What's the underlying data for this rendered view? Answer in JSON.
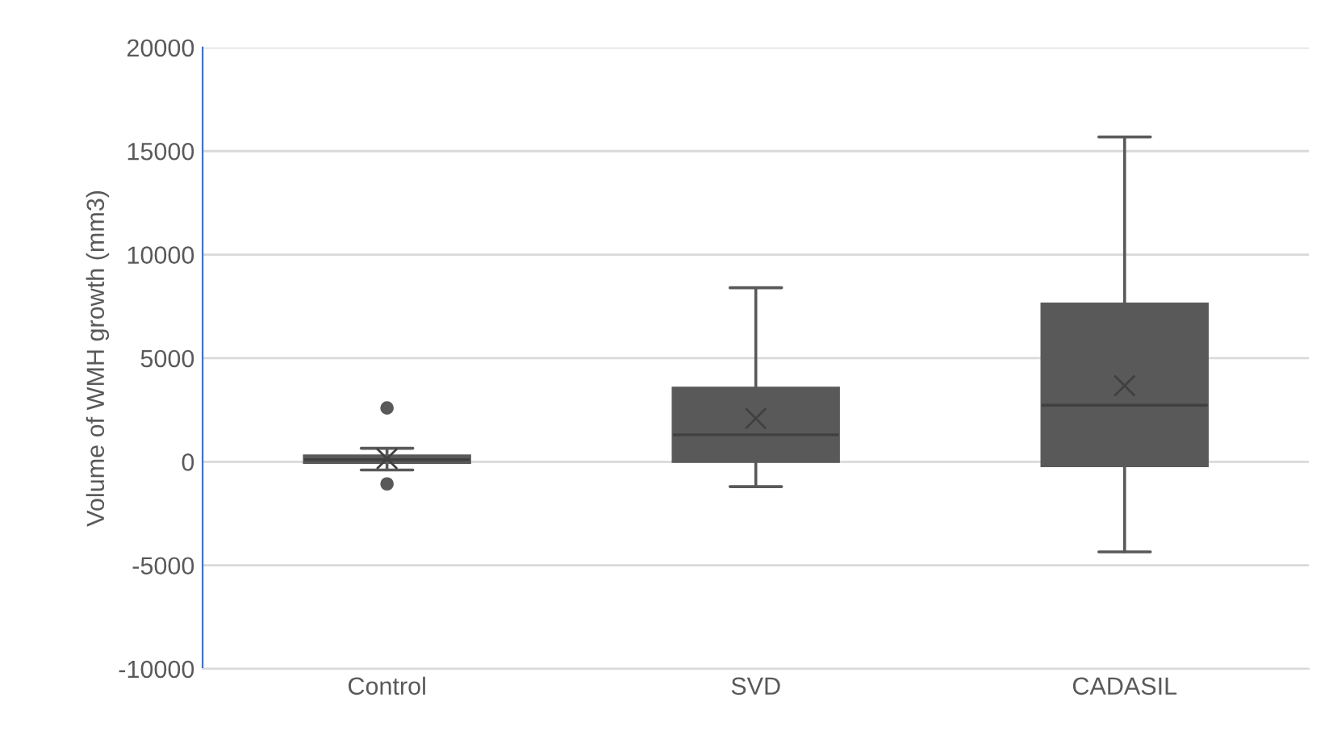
{
  "chart_data": {
    "type": "box",
    "ylabel": "Volume of WMH growth (mm3)",
    "categories": [
      "Control",
      "SVD",
      "CADASIL"
    ],
    "boxes": [
      {
        "low": -400,
        "q1": -50,
        "median": 100,
        "q3": 300,
        "high": 650,
        "mean": 150,
        "outliers": [
          2600,
          -1070
        ]
      },
      {
        "low": -1200,
        "q1": 0,
        "median": 1300,
        "q3": 3570,
        "high": 8400,
        "mean": 2090
      },
      {
        "low": -4350,
        "q1": -210,
        "median": 2730,
        "q3": 7630,
        "high": 15680,
        "mean": 3670
      }
    ],
    "color": "#595959",
    "ylim": [
      -10000,
      20000
    ],
    "yticks": [
      -10000,
      -5000,
      0,
      5000,
      10000,
      15000,
      20000
    ],
    "grid": "y"
  }
}
